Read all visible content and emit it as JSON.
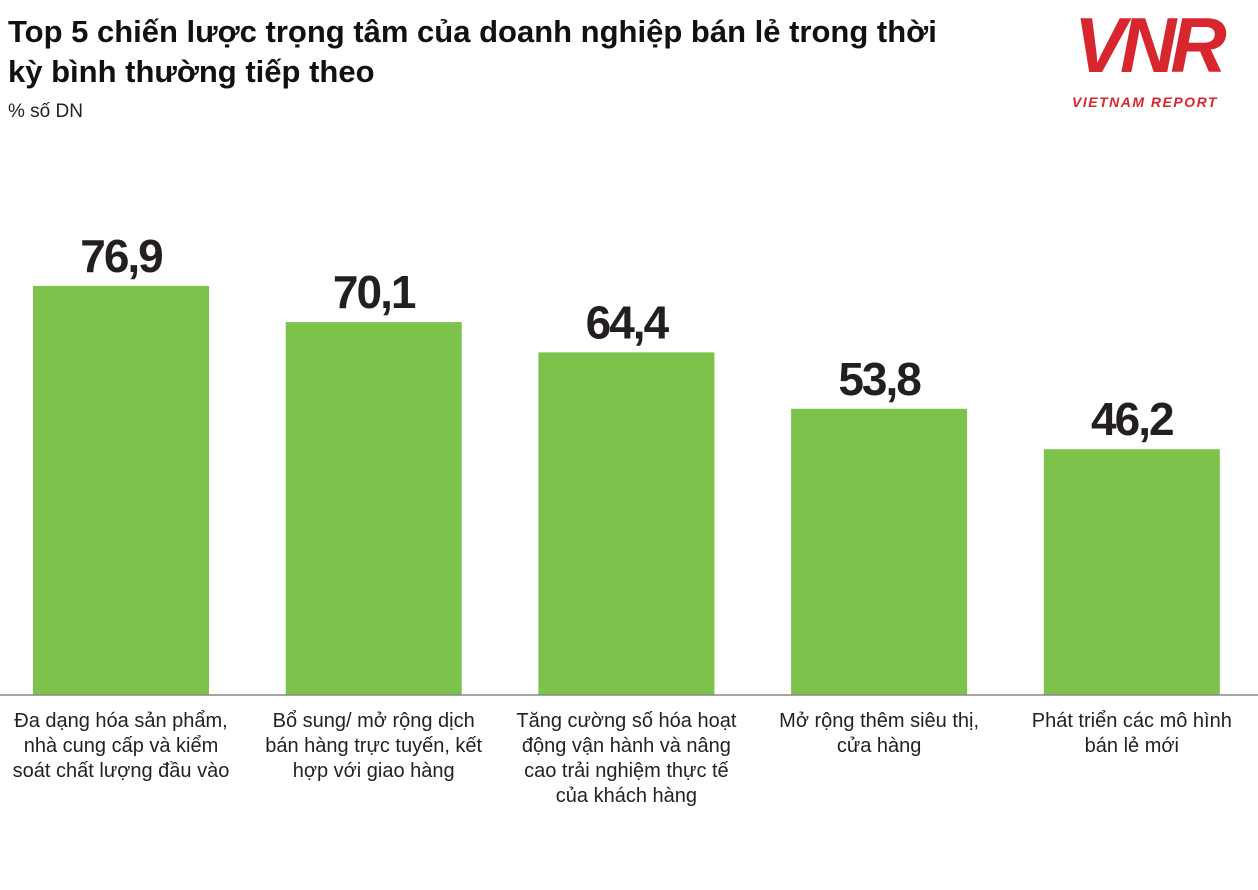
{
  "chart_data": {
    "type": "bar",
    "title": "Top 5 chiến lược trọng tâm của doanh nghiệp bán lẻ trong thời kỳ bình thường tiếp theo",
    "subtitle": "% số DN",
    "categories": [
      "Đa dạng hóa sản phẩm, nhà cung cấp và kiểm soát chất lượng đầu vào",
      "Bổ sung/ mở rộng dịch bán hàng trực tuyến, kết hợp với giao hàng",
      "Tăng cường số hóa hoạt động vận hành và nâng cao trải nghiệm thực tế của khách hàng",
      "Mở rộng thêm siêu thị, cửa hàng",
      "Phát triển các mô hình bán lẻ mới"
    ],
    "values": [
      76.9,
      70.1,
      64.4,
      53.8,
      46.2
    ],
    "value_labels": [
      "76,9",
      "70,1",
      "64,4",
      "53,8",
      "46,2"
    ],
    "color": "#7dc24b"
  },
  "logo": {
    "mark": "VNR",
    "name": "VIETNAM REPORT"
  }
}
